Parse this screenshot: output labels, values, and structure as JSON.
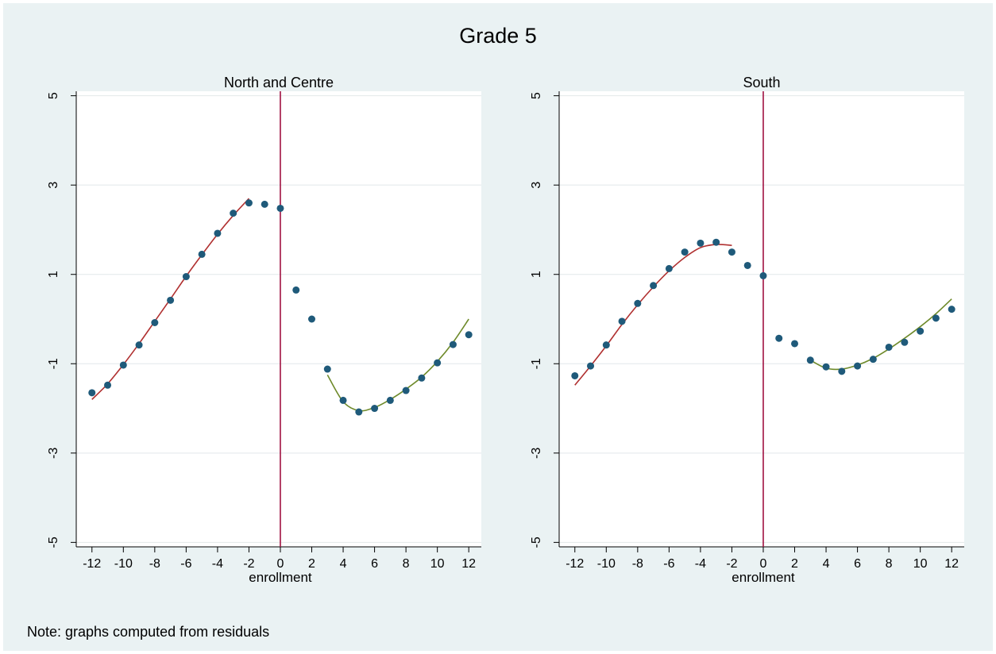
{
  "figure": {
    "title": "Grade 5",
    "note": "Note: graphs computed from residuals"
  },
  "colors": {
    "background": "#eaf2f3",
    "plot_area": "#ffffff",
    "points": "#1f5a7a",
    "fit_left": "#b03030",
    "fit_right": "#6e8a2a",
    "cutoff_line": "#a01040",
    "grid": "#e2e8ea"
  },
  "chart_data": [
    {
      "type": "scatter",
      "title": "North and Centre",
      "xlabel": "enrollment",
      "ylabel": "",
      "xlim": [
        -13,
        12.8
      ],
      "ylim": [
        -5.1,
        5.1
      ],
      "xticks": [
        -12,
        -10,
        -8,
        -6,
        -4,
        -2,
        0,
        2,
        4,
        6,
        8,
        10,
        12
      ],
      "xtick_labels": [
        "-12",
        "-10",
        "-8",
        "-6",
        "-4",
        "-2",
        "0",
        "2",
        "4",
        "6",
        "8",
        "10",
        "12"
      ],
      "yticks": [
        -5,
        -3,
        -1,
        1,
        3,
        5
      ],
      "ytick_labels": [
        "-5",
        "-3",
        "-1",
        "1",
        "3",
        "5"
      ],
      "grid": true,
      "vline_x": 0,
      "points": {
        "x": [
          -12,
          -11,
          -10,
          -9,
          -8,
          -7,
          -6,
          -5,
          -4,
          -3,
          -2,
          -1,
          0,
          1,
          2,
          3,
          4,
          5,
          6,
          7,
          8,
          9,
          10,
          11,
          12
        ],
        "y": [
          -1.65,
          -1.48,
          -1.03,
          -0.58,
          -0.08,
          0.42,
          0.95,
          1.45,
          1.92,
          2.37,
          2.6,
          2.57,
          2.48,
          0.65,
          0.0,
          -1.12,
          -1.82,
          -2.08,
          -2.0,
          -1.82,
          -1.6,
          -1.32,
          -0.98,
          -0.57,
          -0.35
        ]
      },
      "fit_left": {
        "x": [
          -12,
          -11,
          -10,
          -9,
          -8,
          -7,
          -6,
          -5,
          -4,
          -3,
          -2
        ],
        "y": [
          -1.8,
          -1.45,
          -1.02,
          -0.55,
          -0.05,
          0.45,
          0.96,
          1.44,
          1.9,
          2.32,
          2.7
        ]
      },
      "fit_right": {
        "x": [
          3,
          4,
          5,
          6,
          7,
          8,
          9,
          10,
          11,
          12
        ],
        "y": [
          -1.25,
          -1.85,
          -2.05,
          -1.98,
          -1.8,
          -1.57,
          -1.3,
          -0.95,
          -0.52,
          0.0
        ]
      }
    },
    {
      "type": "scatter",
      "title": "South",
      "xlabel": "enrollment",
      "ylabel": "",
      "xlim": [
        -13,
        12.8
      ],
      "ylim": [
        -5.1,
        5.1
      ],
      "xticks": [
        -12,
        -10,
        -8,
        -6,
        -4,
        -2,
        0,
        2,
        4,
        6,
        8,
        10,
        12
      ],
      "xtick_labels": [
        "-12",
        "-10",
        "-8",
        "-6",
        "-4",
        "-2",
        "0",
        "2",
        "4",
        "6",
        "8",
        "10",
        "12"
      ],
      "yticks": [
        -5,
        -3,
        -1,
        1,
        3,
        5
      ],
      "ytick_labels": [
        "-5",
        "-3",
        "-1",
        "1",
        "3",
        "5"
      ],
      "grid": true,
      "vline_x": 0,
      "points": {
        "x": [
          -12,
          -11,
          -10,
          -9,
          -8,
          -7,
          -6,
          -5,
          -4,
          -3,
          -2,
          -1,
          0,
          1,
          2,
          3,
          4,
          5,
          6,
          7,
          8,
          9,
          10,
          11,
          12
        ],
        "y": [
          -1.27,
          -1.05,
          -0.58,
          -0.05,
          0.35,
          0.75,
          1.13,
          1.5,
          1.7,
          1.72,
          1.5,
          1.2,
          0.97,
          -0.43,
          -0.55,
          -0.92,
          -1.07,
          -1.17,
          -1.05,
          -0.9,
          -0.63,
          -0.52,
          -0.27,
          0.02,
          0.22
        ]
      },
      "fit_left": {
        "x": [
          -12,
          -11,
          -10,
          -9,
          -8,
          -7,
          -6,
          -5,
          -4,
          -3,
          -2
        ],
        "y": [
          -1.48,
          -1.05,
          -0.6,
          -0.12,
          0.32,
          0.72,
          1.08,
          1.38,
          1.6,
          1.67,
          1.65
        ]
      },
      "fit_right": {
        "x": [
          3,
          4,
          5,
          6,
          7,
          8,
          9,
          10,
          11,
          12
        ],
        "y": [
          -0.92,
          -1.1,
          -1.12,
          -1.03,
          -0.88,
          -0.67,
          -0.43,
          -0.17,
          0.12,
          0.45
        ]
      }
    }
  ]
}
